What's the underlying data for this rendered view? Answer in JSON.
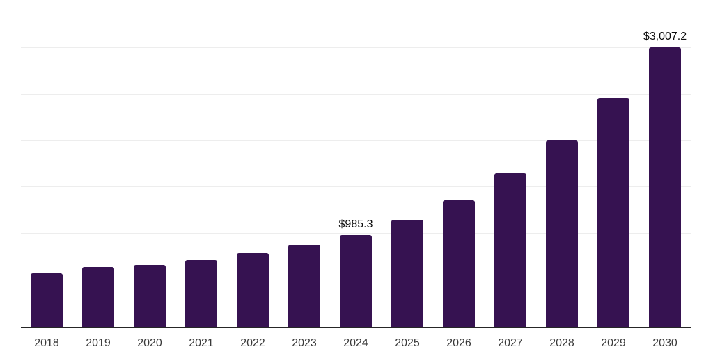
{
  "chart_data": {
    "type": "bar",
    "title": "",
    "xlabel": "",
    "ylabel": "",
    "categories": [
      "2018",
      "2019",
      "2020",
      "2021",
      "2022",
      "2023",
      "2024",
      "2025",
      "2026",
      "2027",
      "2028",
      "2029",
      "2030"
    ],
    "values": [
      578,
      641,
      664,
      720,
      790,
      880,
      985.3,
      1155,
      1362,
      1653,
      2007,
      2461,
      3007.2
    ],
    "bar_labels": [
      null,
      null,
      null,
      null,
      null,
      null,
      "$985.3",
      null,
      null,
      null,
      null,
      null,
      "$3,007.2"
    ],
    "ylim": [
      0,
      3500
    ],
    "gridline_step": 500,
    "grid": "horizontal-only",
    "legend": "none",
    "y_axis_labels_visible": false,
    "colors": {
      "bar": "#361251",
      "gridline": "#ededed",
      "axis_line": "#262626",
      "tick_label": "#3a3a3a",
      "data_label": "#0d0d0d",
      "background": "#ffffff"
    }
  }
}
